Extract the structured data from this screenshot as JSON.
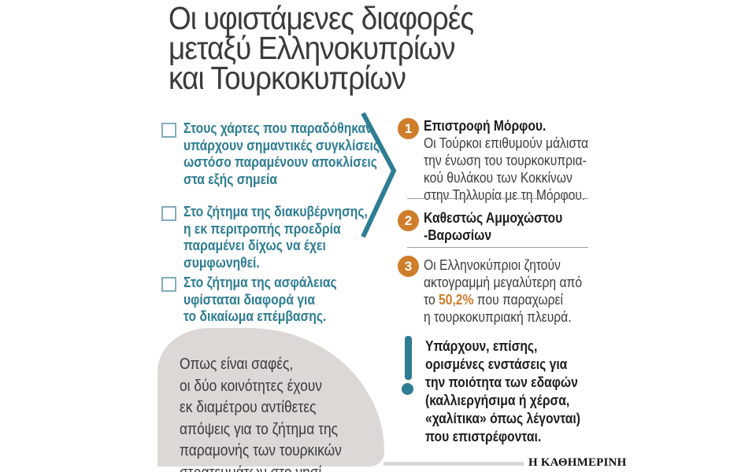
{
  "title": {
    "lines": [
      "Οι υφιστάμενες διαφορές",
      "μεταξύ Ελληνοκυπρίων",
      "και Τουρκοκυπρίων"
    ]
  },
  "left_bullets": [
    {
      "lines": [
        "Στους χάρτες που παραδόθηκαν",
        "υπάρχουν σημαντικές συγκλίσεις,",
        "ωστόσο παραμένουν αποκλίσεις",
        "στα εξής σημεία"
      ]
    },
    {
      "lines": [
        "Στο ζήτημα της διακυβέρνησης,",
        "η εκ περιτροπής προεδρία",
        "παραμένει δίχως να έχει",
        "συμφωνηθεί."
      ]
    },
    {
      "lines": [
        "Στο ζήτημα της ασφάλειας",
        "υφίσταται διαφορά για",
        "το δικαίωμα επέμβασης."
      ]
    }
  ],
  "right_items": [
    {
      "number": "1",
      "title": "Επιστροφή Μόρφου.",
      "body_lines": [
        "Οι Τούρκοι επιθυμούν μάλιστα",
        "την ένωση του τουρκοκυπρια-",
        "κού θυλάκου των Κοκκίνων",
        "στην Τηλλυρία με τη Μόρφου."
      ]
    },
    {
      "number": "2",
      "title_lines": [
        "Καθεστώς Αμμοχώστου",
        "-Βαρωσίων"
      ]
    },
    {
      "number": "3",
      "body_before_lines": [
        "Οι Ελληνοκύπριοι ζητούν",
        "ακτογραμμή μεγαλύτερη από",
        "το "
      ],
      "highlight": "50,2%",
      "body_after_lines": [
        " που παραχωρεί",
        "η τουρκοκυπριακή πλευρά."
      ]
    }
  ],
  "note": {
    "lines": [
      "Υπάρχουν, επίσης,",
      "ορισμένες ενστάσεις για",
      "την ποιότητα των εδαφών",
      "(καλλιεργήσιμα ή χέρσα,",
      "«χαλίτικα» όπως λέγονται)",
      "που επιστρέφονται."
    ]
  },
  "conclusion": {
    "lines": [
      "Οπως είναι σαφές,",
      "οι δύο κοινότητες έχουν",
      "εκ διαμέτρου αντίθετες",
      "απόψεις για το ζήτημα της",
      "παραμονής των τουρκικών",
      "στρατευμάτων στο νησί."
    ]
  },
  "brand": "Η ΚΑΘΗΜΕΡΙΝΗ",
  "colors": {
    "teal": "#2d7d93",
    "teal-light": "#82abbd",
    "orange": "#cf7d2a",
    "dark": "#3b3b3b",
    "near-black": "#1d1d1d",
    "sep": "#9b9b9b",
    "blob": "#dbd8d6",
    "strip": "#d9d7d5",
    "brand": "#111111"
  }
}
